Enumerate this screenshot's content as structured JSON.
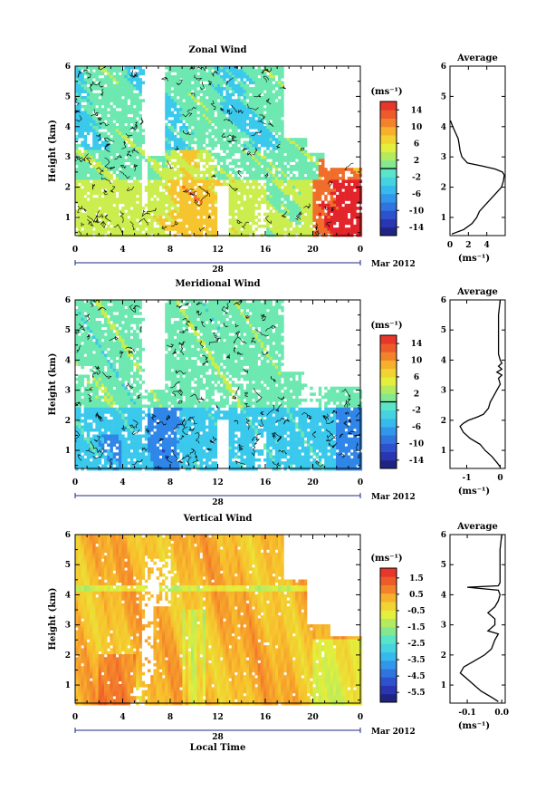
{
  "chart_data": [
    {
      "type": "heatmap",
      "title": "Zonal Wind",
      "ylabel": "Height (km)",
      "x_ticks": [
        "0",
        "4",
        "8",
        "12",
        "16",
        "20",
        "0"
      ],
      "date_day": "28",
      "date_month": "Mar 2012",
      "y_ticks": [
        "1",
        "2",
        "3",
        "4",
        "5",
        "6"
      ],
      "xlim": [
        0,
        24
      ],
      "ylim": [
        0.4,
        6
      ],
      "colorbar": {
        "unit": "(ms⁻¹)",
        "range": [
          -16,
          16
        ],
        "tick_labels": [
          "14",
          "10",
          "6",
          "2",
          "-2",
          "-6",
          "-10",
          "-14"
        ],
        "tick_values": [
          14,
          10,
          6,
          2,
          -2,
          -6,
          -10,
          -14
        ]
      },
      "average_profile": {
        "title": "Average",
        "xlabel": "(ms⁻¹)",
        "x_ticks": [
          "0",
          "2",
          "4"
        ],
        "x_tick_values": [
          0,
          2,
          4
        ],
        "xlim": [
          0,
          6
        ],
        "height": [
          0.45,
          0.6,
          0.8,
          1.0,
          1.2,
          1.4,
          1.6,
          1.8,
          2.0,
          2.2,
          2.4,
          2.5,
          2.6,
          2.7,
          2.8,
          3.0,
          3.2,
          3.4,
          3.6,
          3.8,
          4.0,
          4.2
        ],
        "value": [
          0.2,
          1.5,
          2.4,
          2.9,
          3.2,
          3.8,
          4.4,
          5.0,
          5.6,
          5.8,
          5.9,
          5.7,
          4.9,
          3.5,
          1.9,
          1.3,
          1.1,
          1.0,
          0.9,
          0.6,
          0.3,
          0.05
        ]
      }
    },
    {
      "type": "heatmap",
      "title": "Meridional Wind",
      "ylabel": "Height (km)",
      "x_ticks": [
        "0",
        "4",
        "8",
        "12",
        "16",
        "20",
        "0"
      ],
      "date_day": "28",
      "date_month": "Mar 2012",
      "y_ticks": [
        "1",
        "2",
        "3",
        "4",
        "5",
        "6"
      ],
      "xlim": [
        0,
        24
      ],
      "ylim": [
        0.4,
        6
      ],
      "colorbar": {
        "unit": "(ms⁻¹)",
        "range": [
          -16,
          16
        ],
        "tick_labels": [
          "14",
          "10",
          "6",
          "2",
          "-2",
          "-6",
          "-10",
          "-14"
        ],
        "tick_values": [
          14,
          10,
          6,
          2,
          -2,
          -6,
          -10,
          -14
        ]
      },
      "average_profile": {
        "title": "Average",
        "xlabel": "(ms⁻¹)",
        "x_ticks": [
          "-1",
          "0"
        ],
        "x_tick_values": [
          -1,
          0
        ],
        "xlim": [
          -1.5,
          0.15
        ],
        "height": [
          0.45,
          0.6,
          0.8,
          1.0,
          1.2,
          1.4,
          1.6,
          1.8,
          1.9,
          2.0,
          2.1,
          2.2,
          2.4,
          2.6,
          2.8,
          3.0,
          3.2,
          3.4,
          3.5,
          3.6,
          3.7,
          3.8,
          3.9,
          4.0,
          4.2,
          4.5,
          5.0,
          5.5,
          6.0
        ],
        "value": [
          0.0,
          -0.1,
          -0.25,
          -0.45,
          -0.6,
          -0.9,
          -1.1,
          -1.2,
          -1.1,
          -0.95,
          -0.7,
          -0.5,
          -0.35,
          -0.3,
          -0.2,
          -0.1,
          0.0,
          -0.05,
          0.05,
          -0.1,
          0.05,
          -0.05,
          0.05,
          0.0,
          -0.05,
          -0.05,
          -0.05,
          -0.05,
          0.0
        ]
      }
    },
    {
      "type": "heatmap",
      "title": "Vertical Wind",
      "ylabel": "Height (km)",
      "xlabel": "Local Time",
      "x_ticks": [
        "0",
        "4",
        "8",
        "12",
        "16",
        "20",
        "0"
      ],
      "date_day": "28",
      "date_month": "Mar 2012",
      "y_ticks": [
        "1",
        "2",
        "3",
        "4",
        "5",
        "6"
      ],
      "xlim": [
        0,
        24
      ],
      "ylim": [
        0.4,
        6
      ],
      "colorbar": {
        "unit": "(ms⁻¹)",
        "range": [
          -6.1,
          2.1
        ],
        "tick_labels": [
          "1.5",
          "0.5",
          "-0.5",
          "-1.5",
          "-2.5",
          "-3.5",
          "-4.5",
          "-5.5"
        ],
        "tick_values": [
          1.5,
          0.5,
          -0.5,
          -1.5,
          -2.5,
          -3.5,
          -4.5,
          -5.5
        ]
      },
      "average_profile": {
        "title": "Average",
        "xlabel": "(ms⁻¹)",
        "x_ticks": [
          "-0.1",
          "0.0"
        ],
        "x_tick_values": [
          -0.1,
          0.0
        ],
        "xlim": [
          -0.15,
          0.01
        ],
        "height": [
          0.45,
          0.6,
          0.8,
          1.0,
          1.2,
          1.4,
          1.6,
          1.8,
          2.0,
          2.2,
          2.5,
          2.7,
          2.8,
          3.0,
          3.2,
          3.4,
          3.6,
          3.8,
          4.0,
          4.15,
          4.25,
          4.3,
          4.4,
          4.6,
          5.0,
          5.5,
          6.0
        ],
        "value": [
          -0.01,
          -0.03,
          -0.06,
          -0.08,
          -0.1,
          -0.12,
          -0.11,
          -0.08,
          -0.05,
          -0.03,
          -0.02,
          -0.01,
          -0.04,
          -0.02,
          -0.02,
          -0.04,
          -0.02,
          -0.01,
          -0.005,
          -0.01,
          -0.1,
          -0.01,
          -0.005,
          -0.005,
          -0.005,
          -0.005,
          0.0
        ]
      }
    }
  ]
}
